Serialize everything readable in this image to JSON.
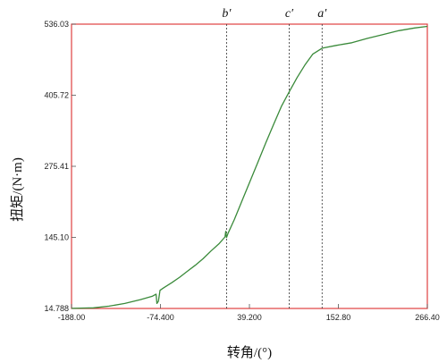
{
  "chart_data": {
    "type": "line",
    "xlabel": "转角/(°)",
    "ylabel": "扭矩/(N·m)",
    "x_ticks": [
      "-188.00",
      "-74.400",
      "39.200",
      "152.80",
      "266.40"
    ],
    "y_ticks": [
      "14.788",
      "145.10",
      "275.41",
      "405.72",
      "536.03"
    ],
    "xlim": [
      -188.0,
      266.4
    ],
    "ylim": [
      14.788,
      536.03
    ],
    "grid": false,
    "line_color": "#3a8a3a",
    "frame_color": "#e04040",
    "markers": [
      {
        "label": "b′",
        "x": 10
      },
      {
        "label": "c′",
        "x": 90
      },
      {
        "label": "a′",
        "x": 132
      }
    ],
    "series": [
      {
        "values": [
          [
            -188.0,
            15
          ],
          [
            -160.0,
            16
          ],
          [
            -140.0,
            19
          ],
          [
            -120.0,
            24
          ],
          [
            -100.0,
            31
          ],
          [
            -85.0,
            37
          ],
          [
            -80.0,
            41
          ],
          [
            -79.0,
            24
          ],
          [
            -77.0,
            28
          ],
          [
            -75.0,
            48
          ],
          [
            -70.0,
            53
          ],
          [
            -60.0,
            62
          ],
          [
            -50.0,
            72
          ],
          [
            -40.0,
            83
          ],
          [
            -30.0,
            94
          ],
          [
            -20.0,
            106
          ],
          [
            -10.0,
            120
          ],
          [
            0.0,
            133
          ],
          [
            8.0,
            146
          ],
          [
            9.0,
            156
          ],
          [
            10.0,
            145
          ],
          [
            12.0,
            153
          ],
          [
            20.0,
            178
          ],
          [
            30.0,
            213
          ],
          [
            40.0,
            248
          ],
          [
            50.0,
            283
          ],
          [
            60.0,
            318
          ],
          [
            70.0,
            352
          ],
          [
            80.0,
            385
          ],
          [
            90.0,
            412
          ],
          [
            100.0,
            438
          ],
          [
            110.0,
            461
          ],
          [
            120.0,
            481
          ],
          [
            132.0,
            492
          ],
          [
            150.0,
            497
          ],
          [
            170.0,
            502
          ],
          [
            190.0,
            510
          ],
          [
            210.0,
            517
          ],
          [
            230.0,
            524
          ],
          [
            250.0,
            529
          ],
          [
            266.4,
            532
          ]
        ]
      }
    ]
  }
}
